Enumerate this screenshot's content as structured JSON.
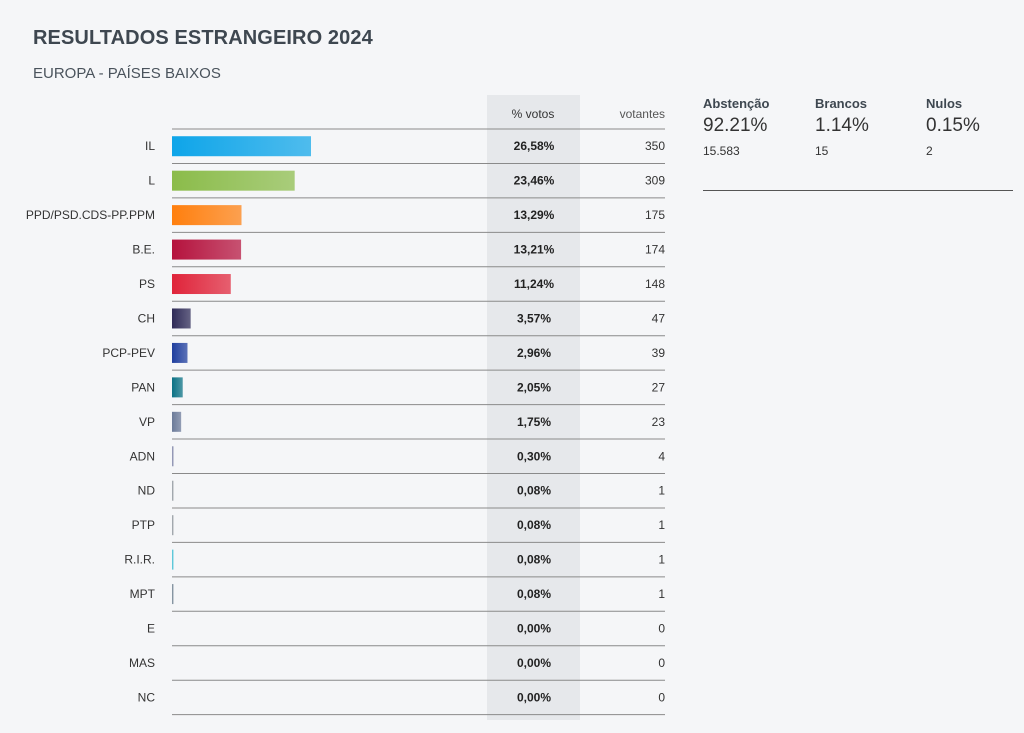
{
  "title": "RESULTADOS ESTRANGEIRO 2024",
  "subtitle": "EUROPA - PAÍSES BAIXOS",
  "chart_data": {
    "type": "bar",
    "orientation": "horizontal",
    "columns": {
      "pct": "% votos",
      "votes": "votantes"
    },
    "categories": [
      "IL",
      "L",
      "PPD/PSD.CDS-PP.PPM",
      "B.E.",
      "PS",
      "CH",
      "PCP-PEV",
      "PAN",
      "VP",
      "ADN",
      "ND",
      "PTP",
      "R.I.R.",
      "MPT",
      "E",
      "MAS",
      "NC"
    ],
    "values": [
      26.58,
      23.46,
      13.29,
      13.21,
      11.24,
      3.57,
      2.96,
      2.05,
      1.75,
      0.3,
      0.08,
      0.08,
      0.08,
      0.08,
      0.0,
      0.0,
      0.0
    ],
    "pct_labels": [
      "26,58%",
      "23,46%",
      "13,29%",
      "13,21%",
      "11,24%",
      "3,57%",
      "2,96%",
      "2,05%",
      "1,75%",
      "0,30%",
      "0,08%",
      "0,08%",
      "0,08%",
      "0,08%",
      "0,00%",
      "0,00%",
      "0,00%"
    ],
    "votes": [
      350,
      309,
      175,
      174,
      148,
      47,
      39,
      27,
      23,
      4,
      1,
      1,
      1,
      1,
      0,
      0,
      0
    ],
    "colors": [
      "#0ea5e9",
      "#8bbc4a",
      "#ff7f0e",
      "#b5123d",
      "#e0243a",
      "#2e2a57",
      "#1f3e9e",
      "#0b7285",
      "#6b7a99",
      "#8a8fb0",
      "#9aa0a6",
      "#9aa0a6",
      "#4fc3d6",
      "#7a8b99",
      "#cccccc",
      "#cccccc",
      "#cccccc"
    ],
    "xlim": [
      0,
      26.58
    ]
  },
  "stats": [
    {
      "label": "Abstenção",
      "pct": "92.21%",
      "count": "15.583"
    },
    {
      "label": "Brancos",
      "pct": "1.14%",
      "count": "15"
    },
    {
      "label": "Nulos",
      "pct": "0.15%",
      "count": "2"
    }
  ]
}
